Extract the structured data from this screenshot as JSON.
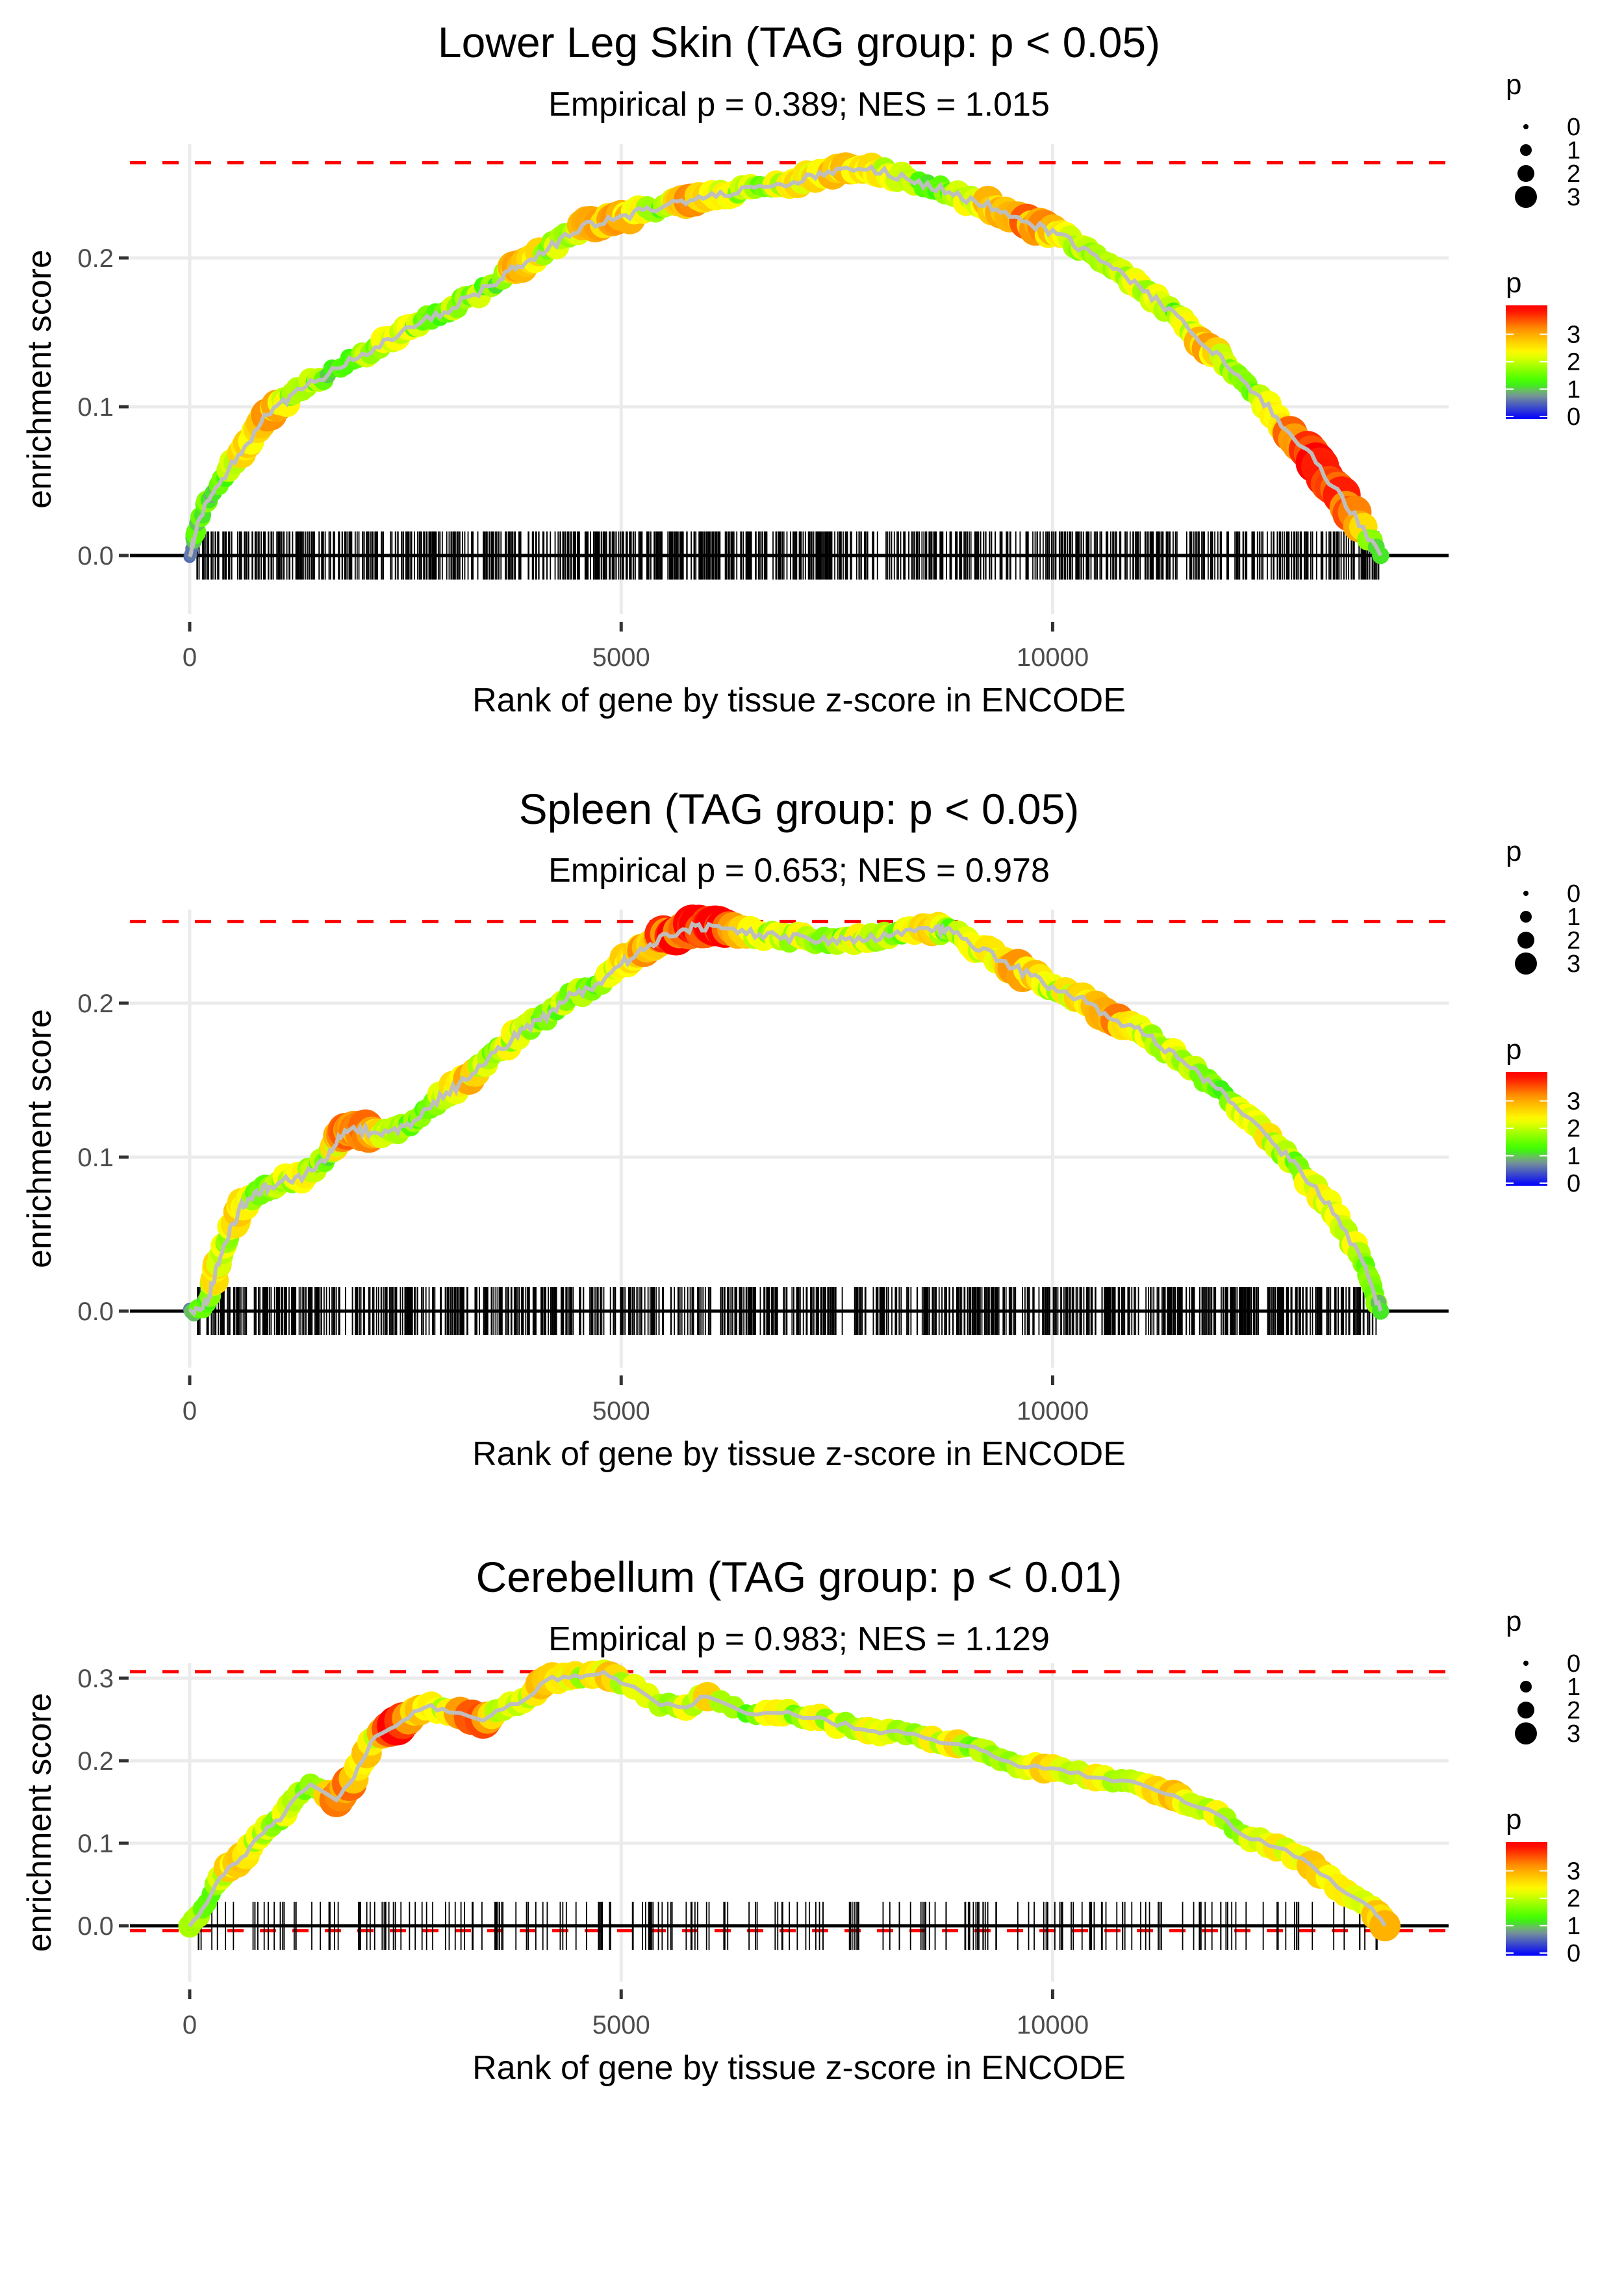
{
  "chart_data": [
    {
      "type": "line",
      "title": "Lower Leg Skin (TAG group: p < 0.05)",
      "subtitle": "Empirical p = 0.389; NES = 1.015",
      "xlabel": "Rank of gene by tissue z-score in ENCODE",
      "ylabel": "enrichment score",
      "xlim": [
        -1500,
        14900
      ],
      "ylim": [
        -0.015,
        0.275
      ],
      "xticks": [
        0,
        5000,
        10000
      ],
      "xtick_labels": [
        "0",
        "5000",
        "10000"
      ],
      "yticks": [
        0.0,
        0.1,
        0.2
      ],
      "ytick_labels": [
        "0.0",
        "0.1",
        "0.2"
      ],
      "grid": true,
      "max_es_line": 0.264,
      "min_es_line": 0.0,
      "rug_density": "dense",
      "x": [
        0,
        100,
        300,
        600,
        900,
        1200,
        1600,
        2000,
        2400,
        2800,
        3200,
        3600,
        3800,
        4200,
        4600,
        5000,
        5400,
        5800,
        6200,
        6600,
        7000,
        7400,
        7800,
        8200,
        8600,
        9000,
        9400,
        9800,
        10200,
        10600,
        11000,
        11400,
        11800,
        12200,
        12600,
        13000,
        13400,
        13800
      ],
      "y": [
        0.0,
        0.025,
        0.045,
        0.07,
        0.095,
        0.108,
        0.122,
        0.136,
        0.148,
        0.16,
        0.172,
        0.185,
        0.195,
        0.208,
        0.222,
        0.228,
        0.233,
        0.238,
        0.242,
        0.247,
        0.252,
        0.256,
        0.261,
        0.255,
        0.248,
        0.24,
        0.232,
        0.222,
        0.212,
        0.196,
        0.18,
        0.162,
        0.14,
        0.118,
        0.093,
        0.066,
        0.035,
        0.0
      ],
      "p": [
        1,
        1.5,
        1.2,
        2.5,
        3.1,
        2.0,
        1.5,
        1.8,
        2.2,
        1.6,
        2.0,
        1.4,
        3.4,
        1.8,
        2.6,
        3.0,
        1.6,
        3.2,
        2.2,
        1.8,
        2.4,
        2.8,
        2.6,
        2.0,
        1.5,
        2.2,
        2.8,
        3.2,
        2.0,
        1.8,
        2.4,
        1.6,
        3.0,
        1.4,
        2.6,
        3.8,
        3.6,
        1.2
      ]
    },
    {
      "type": "line",
      "title": "Spleen (TAG group: p < 0.05)",
      "subtitle": "Empirical p = 0.653; NES = 0.978",
      "xlabel": "Rank of gene by tissue z-score in ENCODE",
      "ylabel": "enrichment score",
      "xlim": [
        -1500,
        14900
      ],
      "ylim": [
        -0.015,
        0.268
      ],
      "xticks": [
        0,
        5000,
        10000
      ],
      "xtick_labels": [
        "0",
        "5000",
        "10000"
      ],
      "yticks": [
        0.0,
        0.1,
        0.2
      ],
      "ytick_labels": [
        "0.0",
        "0.1",
        "0.2"
      ],
      "grid": true,
      "max_es_line": 0.253,
      "min_es_line": 0.0,
      "rug_density": "dense",
      "x": [
        0,
        200,
        300,
        450,
        600,
        800,
        1000,
        1300,
        1600,
        1800,
        2000,
        2300,
        2600,
        2900,
        3200,
        3500,
        3800,
        4100,
        4400,
        4700,
        5000,
        5300,
        5600,
        5900,
        6200,
        6600,
        7000,
        7400,
        7800,
        8200,
        8600,
        8800,
        9200,
        9600,
        10000,
        10400,
        10800,
        11200,
        11600,
        12000,
        12400,
        12800,
        13200,
        13600,
        13800
      ],
      "y": [
        0.0,
        0.005,
        0.025,
        0.05,
        0.068,
        0.078,
        0.083,
        0.087,
        0.1,
        0.118,
        0.117,
        0.115,
        0.122,
        0.138,
        0.15,
        0.165,
        0.18,
        0.19,
        0.205,
        0.21,
        0.225,
        0.238,
        0.245,
        0.25,
        0.248,
        0.245,
        0.242,
        0.24,
        0.242,
        0.245,
        0.248,
        0.246,
        0.235,
        0.222,
        0.21,
        0.2,
        0.188,
        0.175,
        0.158,
        0.14,
        0.118,
        0.095,
        0.068,
        0.032,
        0.0
      ],
      "p": [
        1,
        1.2,
        2.5,
        1.8,
        2.8,
        1.5,
        2.0,
        2.2,
        1.6,
        3.4,
        3.2,
        2.0,
        1.5,
        2.2,
        2.8,
        1.8,
        2.2,
        1.6,
        2.0,
        1.4,
        2.6,
        3.0,
        3.6,
        3.8,
        3.8,
        2.0,
        2.2,
        1.6,
        2.2,
        1.8,
        2.6,
        1.5,
        2.2,
        3.0,
        2.0,
        2.8,
        3.0,
        1.8,
        2.2,
        1.6,
        2.4,
        1.8,
        2.6,
        2.0,
        1.2
      ]
    },
    {
      "type": "line",
      "title": "Cerebellum (TAG group: p < 0.01)",
      "subtitle": "Empirical p = 0.983; NES = 1.129",
      "xlabel": "Rank of gene by tissue z-score in ENCODE",
      "ylabel": "enrichment score",
      "xlim": [
        -1500,
        14900
      ],
      "ylim": [
        -0.02,
        0.32
      ],
      "xticks": [
        0,
        5000,
        10000
      ],
      "xtick_labels": [
        "0",
        "5000",
        "10000"
      ],
      "yticks": [
        0.0,
        0.1,
        0.2,
        0.3
      ],
      "ytick_labels": [
        "0.0",
        "0.1",
        "0.2",
        "0.3"
      ],
      "grid": true,
      "max_es_line": 0.308,
      "min_es_line": -0.006,
      "rug_density": "sparse",
      "x": [
        0,
        150,
        300,
        450,
        600,
        750,
        900,
        1050,
        1200,
        1400,
        1700,
        1850,
        2000,
        2150,
        2400,
        2600,
        2800,
        3000,
        3400,
        3550,
        3800,
        4000,
        4200,
        4400,
        4600,
        4800,
        5000,
        5450,
        5750,
        6000,
        6450,
        6800,
        7000,
        7300,
        7500,
        7800,
        8000,
        8300,
        8600,
        8900,
        9100,
        9300,
        9600,
        9900,
        10200,
        10500,
        10800,
        11100,
        11400,
        11600,
        11900,
        12200,
        12500,
        12800,
        13100,
        13400,
        13700,
        13850
      ],
      "y": [
        0.0,
        0.02,
        0.05,
        0.07,
        0.08,
        0.1,
        0.12,
        0.13,
        0.155,
        0.17,
        0.155,
        0.17,
        0.2,
        0.23,
        0.24,
        0.26,
        0.265,
        0.26,
        0.25,
        0.26,
        0.27,
        0.285,
        0.3,
        0.3,
        0.305,
        0.305,
        0.295,
        0.27,
        0.265,
        0.28,
        0.255,
        0.26,
        0.255,
        0.25,
        0.245,
        0.24,
        0.235,
        0.235,
        0.225,
        0.218,
        0.215,
        0.205,
        0.195,
        0.19,
        0.185,
        0.18,
        0.175,
        0.168,
        0.16,
        0.148,
        0.135,
        0.11,
        0.1,
        0.085,
        0.065,
        0.04,
        0.02,
        0.0
      ],
      "p": [
        2.2,
        2.0,
        1.8,
        2.4,
        3.0,
        1.8,
        2.2,
        1.8,
        2.4,
        1.6,
        3.6,
        3.2,
        2.8,
        2.4,
        3.8,
        2.6,
        2.4,
        2.2,
        4.0,
        2.2,
        1.8,
        2.6,
        3.2,
        2.4,
        2.0,
        2.6,
        2.2,
        1.8,
        2.2,
        2.4,
        1.6,
        2.8,
        1.8,
        2.2,
        2.0,
        2.4,
        2.2,
        1.6,
        2.2,
        2.6,
        1.8,
        2.0,
        2.2,
        2.4,
        2.2,
        2.6,
        2.0,
        2.2,
        3.0,
        2.4,
        2.2,
        2.0,
        2.4,
        2.2,
        3.0,
        2.2,
        2.6,
        3.0
      ]
    }
  ],
  "legend": {
    "size_title": "p",
    "size_labels": [
      "0",
      "1",
      "2",
      "3"
    ],
    "color_title": "p",
    "color_labels": [
      "3",
      "2",
      "1",
      "0"
    ],
    "color_scale": [
      "#0000ff",
      "#7f8fa0",
      "#33ff00",
      "#ffff00",
      "#ff8000",
      "#ff0000"
    ]
  },
  "colors": {
    "curve_line": "#bebebe",
    "max_line": "#ff0000",
    "grid": "#ebebeb",
    "rug": "#000000"
  }
}
